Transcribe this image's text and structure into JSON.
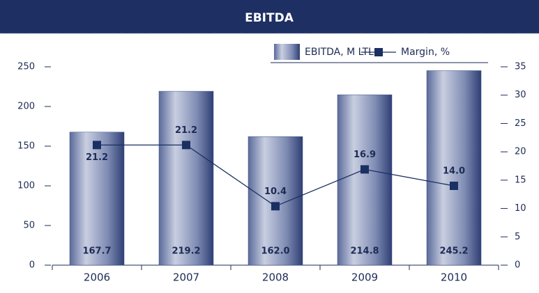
{
  "chart_data": {
    "type": "bar",
    "title": "EBITDA",
    "categories": [
      "2006",
      "2007",
      "2008",
      "2009",
      "2010"
    ],
    "series": [
      {
        "name": "EBITDA, M LTL",
        "type": "bar",
        "color": "#3d4f86",
        "values": [
          167.7,
          219.2,
          162.0,
          214.8,
          245.2
        ],
        "value_labels": [
          "167.7",
          "219.2",
          "162.0",
          "214.8",
          "245.2"
        ]
      },
      {
        "name": "Margin, %",
        "type": "line",
        "axis": "y2",
        "color": "#1a2f62",
        "values": [
          21.2,
          21.2,
          10.4,
          16.9,
          14.0
        ],
        "value_labels": [
          "21.2",
          "21.2",
          "10.4",
          "16.9",
          "14.0"
        ]
      }
    ],
    "ylim": [
      0,
      250
    ],
    "yticks": [
      0,
      50,
      100,
      150,
      200,
      250
    ],
    "y2lim": [
      0,
      35
    ],
    "y2ticks": [
      0,
      5,
      10,
      15,
      20,
      25,
      30,
      35
    ],
    "legend": "top-right"
  }
}
